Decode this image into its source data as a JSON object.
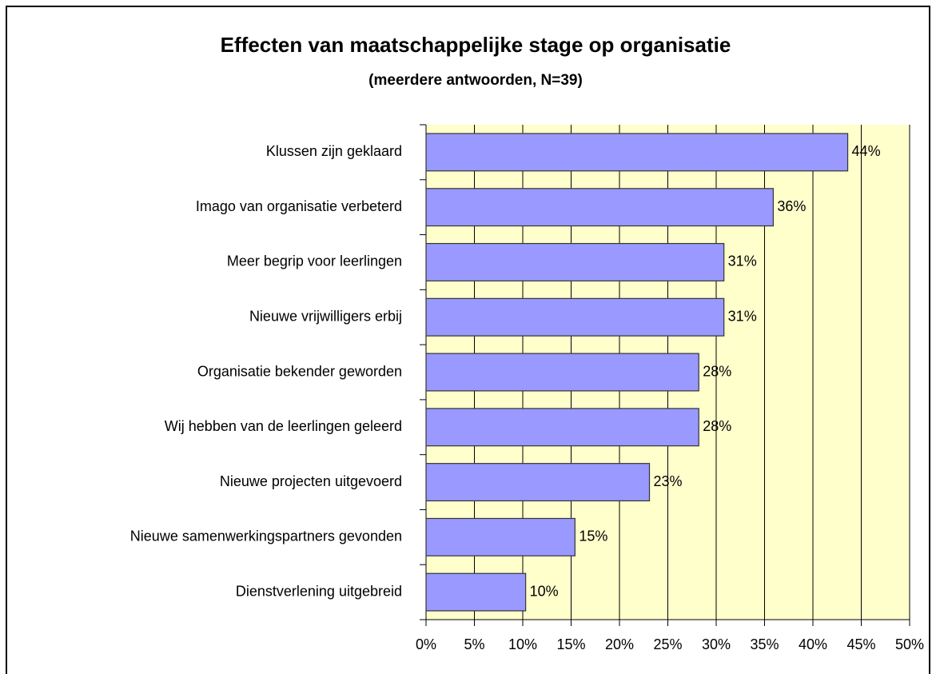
{
  "chart_data": {
    "type": "bar",
    "orientation": "horizontal",
    "title": "Effecten van maatschappelijke stage op organisatie",
    "subtitle": "(meerdere antwoorden, N=39)",
    "categories": [
      "Klussen zijn geklaard",
      "Imago van organisatie verbeterd",
      "Meer begrip voor leerlingen",
      "Nieuwe vrijwilligers erbij",
      "Organisatie bekender geworden",
      "Wij hebben van de leerlingen geleerd",
      "Nieuwe projecten uitgevoerd",
      "Nieuwe samenwerkingspartners gevonden",
      "Dienstverlening uitgebreid"
    ],
    "values": [
      43.6,
      35.9,
      30.8,
      30.8,
      28.2,
      28.2,
      23.1,
      15.4,
      10.3
    ],
    "value_labels": [
      "44%",
      "36%",
      "31%",
      "31%",
      "28%",
      "28%",
      "23%",
      "15%",
      "10%"
    ],
    "color": "#9999ff",
    "xlim": [
      0,
      50
    ],
    "xticks": [
      {
        "value": 0,
        "label": "0%"
      },
      {
        "value": 5,
        "label": "5%"
      },
      {
        "value": 10,
        "label": "10%"
      },
      {
        "value": 15,
        "label": "15%"
      },
      {
        "value": 20,
        "label": "20%"
      },
      {
        "value": 25,
        "label": "25%"
      },
      {
        "value": 30,
        "label": "30%"
      },
      {
        "value": 35,
        "label": "35%"
      },
      {
        "value": 40,
        "label": "40%"
      },
      {
        "value": 45,
        "label": "45%"
      },
      {
        "value": 50,
        "label": "50%"
      }
    ],
    "grid": true
  }
}
